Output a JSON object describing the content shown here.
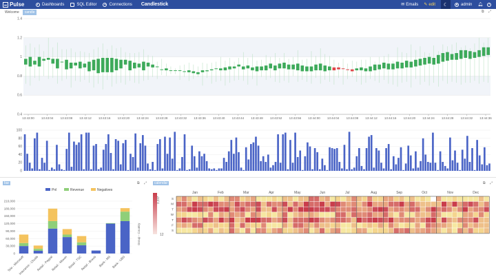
{
  "topbar": {
    "brand": "Pulse",
    "nav": [
      {
        "label": "Dashboards",
        "icon": "dashboard-icon"
      },
      {
        "label": "SQL Editor",
        "icon": "sql-editor-icon"
      },
      {
        "label": "Connections",
        "icon": "connections-icon"
      }
    ],
    "page_title": "Candlestick",
    "emails_label": "Emails",
    "edit_label": "edit",
    "user_label": "admin",
    "theme_icon": "moon-icon",
    "bell_icon": "bell-icon",
    "help_icon": "help-icon",
    "colors": {
      "bar": "#2d4e9e",
      "accent": "#ffd95a"
    }
  },
  "tabs": [
    {
      "label": "Welcome",
      "active": false
    },
    {
      "label": "candle",
      "active": true
    }
  ],
  "panels": {
    "bar_label": "bar",
    "heatmap_label": "calendar",
    "expand_icon": "expand-icon",
    "popout_icon": "popout-icon"
  },
  "chart_data": [
    {
      "type": "candlestick",
      "ylim": [
        0.4,
        1.4
      ],
      "y_ticks": [
        "0.4",
        "0.6",
        "0.8",
        "1",
        "1.2",
        "1.4"
      ],
      "x_tick_labels": [
        "13:43:00",
        "13:43:04",
        "13:43:08",
        "13:43:12",
        "13:43:16",
        "13:43:20",
        "13:43:24",
        "13:43:28",
        "13:43:32",
        "13:43:36",
        "13:43:40",
        "13:43:44",
        "13:43:48",
        "13:43:52",
        "13:43:56",
        "13:44:00",
        "13:44:04",
        "13:44:08",
        "13:44:12",
        "13:44:16",
        "13:44:20",
        "13:44:24",
        "13:44:28",
        "13:44:32",
        "13:44:36"
      ],
      "open": [
        0.98,
        1.0,
        0.96,
        1.0,
        0.98,
        0.99,
        0.98,
        0.98,
        0.95,
        0.97,
        0.94,
        0.94,
        0.95,
        0.93,
        0.95,
        0.97,
        0.98,
        0.99,
        0.99,
        0.99,
        0.98,
        0.97,
        0.97,
        0.96,
        0.94,
        0.93,
        0.95,
        0.94,
        0.92,
        0.9,
        0.87,
        0.88,
        0.86,
        0.86,
        0.86,
        0.85,
        0.86,
        0.85,
        0.84,
        0.86,
        0.86,
        0.87,
        0.88,
        0.88,
        0.89,
        0.9,
        0.9,
        0.92,
        0.9,
        0.91,
        0.89,
        0.9,
        0.9,
        0.91,
        0.93,
        0.91,
        0.93,
        0.94,
        0.92,
        0.92,
        0.93,
        0.91,
        0.9,
        0.9,
        0.92,
        0.93,
        0.91,
        0.9,
        0.89,
        0.89,
        0.88,
        0.87,
        0.87,
        0.88,
        0.89,
        0.88,
        0.9,
        0.92,
        0.92,
        0.94,
        0.93,
        0.93,
        0.95,
        0.94,
        0.96,
        0.95,
        0.97,
        0.98,
        0.99,
        1.0,
        0.99,
        1.02,
        1.04,
        1.05,
        1.03,
        1.04,
        1.07,
        1.07,
        1.06,
        1.05,
        1.07,
        1.1,
        1.1
      ],
      "close": [
        0.92,
        0.9,
        0.92,
        0.9,
        0.96,
        0.97,
        0.93,
        0.88,
        0.95,
        0.87,
        0.88,
        0.91,
        0.88,
        0.89,
        0.85,
        0.86,
        0.83,
        0.84,
        0.84,
        0.84,
        0.86,
        0.88,
        0.92,
        0.86,
        0.88,
        0.89,
        0.86,
        0.9,
        0.89,
        0.9,
        0.87,
        0.86,
        0.86,
        0.86,
        0.86,
        0.85,
        0.84,
        0.83,
        0.82,
        0.84,
        0.85,
        0.86,
        0.88,
        0.86,
        0.86,
        0.87,
        0.88,
        0.9,
        0.87,
        0.88,
        0.86,
        0.85,
        0.86,
        0.86,
        0.88,
        0.86,
        0.88,
        0.88,
        0.87,
        0.87,
        0.86,
        0.85,
        0.85,
        0.85,
        0.86,
        0.86,
        0.85,
        0.86,
        0.86,
        0.87,
        0.88,
        0.87,
        0.85,
        0.86,
        0.86,
        0.85,
        0.85,
        0.86,
        0.87,
        0.88,
        0.87,
        0.87,
        0.88,
        0.88,
        0.89,
        0.89,
        0.9,
        0.91,
        0.92,
        0.93,
        0.92,
        0.93,
        0.95,
        0.96,
        0.97,
        0.97,
        0.98,
        0.99,
        0.98,
        0.99,
        1.0,
        1.01,
        1.02
      ],
      "high": [
        1.12,
        1.14,
        1.1,
        1.13,
        1.06,
        1.2,
        1.1,
        1.15,
        1.08,
        1.08,
        1.09,
        1.05,
        1.06,
        1.05,
        1.04,
        1.08,
        1.1,
        1.14,
        1.08,
        1.12,
        1.09,
        1.1,
        1.05,
        1.04,
        1.04,
        1.05,
        1.08,
        1.02,
        1.01,
        0.95,
        0.98,
        0.93,
        0.9,
        0.88,
        0.91,
        0.92,
        0.94,
        0.92,
        0.9,
        0.94,
        0.93,
        0.94,
        0.95,
        1.0,
        0.96,
        0.99,
        0.95,
        0.99,
        1.05,
        0.99,
        1.03,
        0.96,
        0.97,
        1.02,
        1.0,
        1.04,
        0.99,
        1.04,
        0.98,
        1.0,
        1.07,
        0.97,
        0.98,
        1.06,
        1.01,
        1.09,
        1.03,
        1.01,
        0.97,
        0.94,
        0.98,
        0.93,
        0.96,
        0.95,
        0.97,
        0.97,
        1.0,
        0.95,
        1.0,
        1.01,
        1.03,
        0.96,
        1.1,
        1.05,
        1.04,
        1.13,
        1.07,
        1.11,
        1.05,
        1.04,
        1.12,
        1.06,
        1.13,
        1.11,
        1.13,
        1.15,
        1.1,
        1.12,
        1.09,
        1.14,
        1.2,
        1.15,
        1.2
      ],
      "low": [
        0.72,
        0.7,
        0.78,
        0.75,
        0.8,
        0.77,
        0.78,
        0.72,
        0.75,
        0.77,
        0.68,
        0.75,
        0.74,
        0.76,
        0.73,
        0.68,
        0.72,
        0.66,
        0.76,
        0.69,
        0.72,
        0.73,
        0.71,
        0.75,
        0.73,
        0.72,
        0.75,
        0.76,
        0.79,
        0.77,
        0.81,
        0.8,
        0.82,
        0.82,
        0.76,
        0.79,
        0.75,
        0.77,
        0.79,
        0.7,
        0.78,
        0.72,
        0.74,
        0.75,
        0.7,
        0.73,
        0.75,
        0.76,
        0.75,
        0.71,
        0.77,
        0.7,
        0.79,
        0.76,
        0.78,
        0.74,
        0.73,
        0.75,
        0.73,
        0.8,
        0.74,
        0.76,
        0.74,
        0.72,
        0.78,
        0.72,
        0.76,
        0.74,
        0.71,
        0.78,
        0.71,
        0.77,
        0.79,
        0.74,
        0.71,
        0.73,
        0.77,
        0.75,
        0.73,
        0.76,
        0.72,
        0.71,
        0.69,
        0.73,
        0.74,
        0.68,
        0.77,
        0.71,
        0.74,
        0.7,
        0.73,
        0.69,
        0.75,
        0.72,
        0.74,
        0.73,
        0.71,
        0.73,
        0.73,
        0.75,
        0.72,
        0.74,
        0.73
      ]
    },
    {
      "type": "bar",
      "ylim": [
        0,
        100
      ],
      "y_ticks": [
        "0",
        "20",
        "40",
        "60",
        "80",
        "100"
      ],
      "values": [
        90,
        42,
        20,
        6,
        80,
        94,
        4,
        32,
        20,
        74,
        2,
        8,
        4,
        64,
        16,
        4,
        2,
        54,
        94,
        10,
        72,
        64,
        70,
        90,
        4,
        94,
        94,
        4,
        62,
        66,
        4,
        8,
        52,
        66,
        90,
        44,
        4,
        78,
        74,
        16,
        68,
        76,
        2,
        42,
        34,
        92,
        8,
        68,
        88,
        62,
        18,
        4,
        22,
        2,
        66,
        78,
        6,
        84,
        42,
        82,
        30,
        96,
        2,
        6,
        34,
        90,
        2,
        4,
        62,
        36,
        8,
        48,
        36,
        42,
        24,
        6,
        4,
        6,
        2,
        6,
        6,
        32,
        22,
        48,
        76,
        42,
        82,
        46,
        8,
        2,
        58,
        28,
        66,
        70,
        84,
        62,
        24,
        36,
        22,
        40,
        8,
        14,
        22,
        90,
        20,
        90,
        94,
        4,
        76,
        20,
        94,
        34,
        50,
        2,
        36,
        70,
        60,
        4,
        56,
        46,
        4,
        30,
        14,
        2,
        58,
        56,
        54,
        56,
        22,
        6,
        64,
        4,
        96,
        4,
        8,
        36,
        56,
        12,
        4,
        56,
        84,
        88,
        8,
        56,
        50,
        20,
        6,
        56,
        66,
        4,
        36,
        16,
        32,
        58,
        2,
        18,
        62,
        38,
        6,
        48,
        8,
        24,
        80,
        40,
        22,
        20,
        94,
        20,
        2,
        48,
        22,
        12,
        6,
        82,
        26,
        50,
        20,
        2,
        52,
        30,
        86,
        22,
        56,
        2,
        76,
        38,
        16,
        58,
        14,
        18
      ]
    },
    {
      "type": "bar",
      "stacked": true,
      "legend": [
        "Pnl",
        "Revenue",
        "Negatives"
      ],
      "legend_position": "top",
      "y_ticks": [
        "0",
        "30,000",
        "60,000",
        "90,000",
        "120,000",
        "150,000",
        "180,000",
        "210,000"
      ],
      "ylim": [
        0,
        210000
      ],
      "categories": [
        "Tele - Microsoft",
        "Insurance - Chubb",
        "Retail - Paypal",
        "Retail - Moxon",
        "Retail - TSC",
        "Retail - Bravis",
        "Bank - MS",
        "Bank - UBS"
      ],
      "series": [
        {
          "name": "Pnl",
          "values": [
            30000,
            11000,
            100000,
            66000,
            33000,
            12000,
            120000,
            130000
          ]
        },
        {
          "name": "Revenue",
          "values": [
            12000,
            8000,
            30000,
            10000,
            12000,
            0,
            2000,
            38000
          ]
        },
        {
          "name": "Negatives",
          "values": [
            34000,
            13000,
            50000,
            22000,
            25000,
            0,
            0,
            14000
          ]
        }
      ],
      "xlabel": "Group - Country"
    },
    {
      "type": "heatmap",
      "months": [
        "Jan",
        "Feb",
        "Mar",
        "Apr",
        "May",
        "Jun",
        "Jul",
        "Aug",
        "Sep",
        "Oct",
        "Nov",
        "Dec"
      ],
      "weekdays": [
        "S",
        "M",
        "T",
        "W",
        "T",
        "F",
        "S"
      ],
      "scale_labels": [
        "2,237",
        "12"
      ],
      "colors": {
        "low": "#f6e7a1",
        "mid": "#e79a7a",
        "high": "#c93d4b"
      }
    }
  ]
}
